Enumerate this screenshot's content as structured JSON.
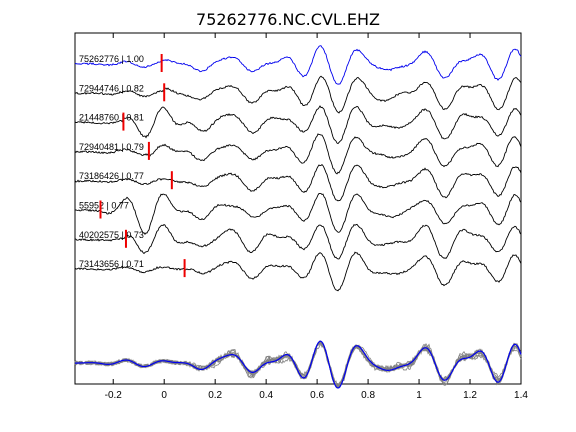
{
  "chart_data": {
    "type": "line",
    "title": "75262776.NC.CVL.EHZ",
    "xlabel": "",
    "ylabel": "",
    "xlim": [
      -0.35,
      1.4
    ],
    "xticks": [
      -0.2,
      0,
      0.2,
      0.4,
      0.6,
      0.8,
      1,
      1.2,
      1.4
    ],
    "xtick_labels": [
      "-0.2",
      "0",
      "0.2",
      "0.4",
      "0.6",
      "0.8",
      "1",
      "1.2",
      "1.4"
    ],
    "grid": false,
    "colors": {
      "reference": "#0000ee",
      "trace": "#000000",
      "pick": "#ee0000",
      "stack": "#808080"
    },
    "series": [
      {
        "name": "75262776 | 1.00",
        "pick_time": -0.01,
        "color": "#0000ee"
      },
      {
        "name": "72944746 | 0.82",
        "pick_time": 0.0,
        "color": "#000000"
      },
      {
        "name": "21448760 | 0.81",
        "pick_time": -0.16,
        "color": "#000000"
      },
      {
        "name": "72940481 | 0.79",
        "pick_time": -0.06,
        "color": "#000000"
      },
      {
        "name": "73186426 | 0.77",
        "pick_time": 0.03,
        "color": "#000000"
      },
      {
        "name": "55952 | 0.77",
        "pick_time": -0.25,
        "color": "#000000"
      },
      {
        "name": "40202575 | 0.73",
        "pick_time": -0.15,
        "color": "#000000"
      },
      {
        "name": "73143656 | 0.71",
        "pick_time": 0.08,
        "color": "#000000"
      }
    ],
    "stack_panel": {
      "overlay_count": 8,
      "reference_color": "#0000ee",
      "overlay_color": "#808080"
    }
  }
}
